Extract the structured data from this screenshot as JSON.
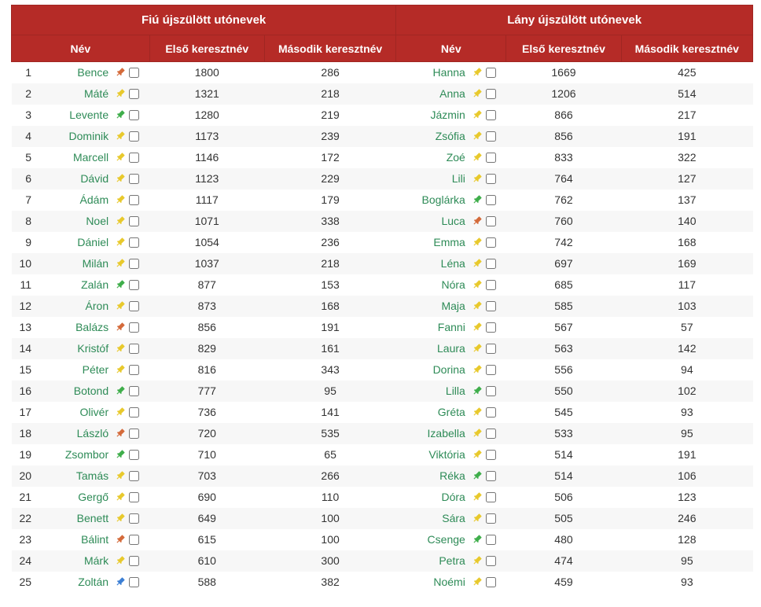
{
  "colors": {
    "header_bg": "#b52b27",
    "header_border": "#a02622",
    "header_text": "#ffffff",
    "row_odd": "#ffffff",
    "row_even": "#f7f7f7",
    "name_link": "#2e8b57",
    "text": "#333333",
    "pin_yellow": "#e8c92c",
    "pin_green": "#3fae4b",
    "pin_orange": "#d46a3a",
    "pin_blue": "#3c7fd4"
  },
  "headers": {
    "group_boy": "Fiú újszülött utónevek",
    "group_girl": "Lány újszülött utónevek",
    "name": "Név",
    "first": "Első keresztnév",
    "second": "Második keresztnév"
  },
  "rows": [
    {
      "rank": 1,
      "boy": {
        "name": "Bence",
        "pin": "orange",
        "first": 1800,
        "second": 286
      },
      "girl": {
        "name": "Hanna",
        "pin": "yellow",
        "first": 1669,
        "second": 425
      }
    },
    {
      "rank": 2,
      "boy": {
        "name": "Máté",
        "pin": "yellow",
        "first": 1321,
        "second": 218
      },
      "girl": {
        "name": "Anna",
        "pin": "yellow",
        "first": 1206,
        "second": 514
      }
    },
    {
      "rank": 3,
      "boy": {
        "name": "Levente",
        "pin": "green",
        "first": 1280,
        "second": 219
      },
      "girl": {
        "name": "Jázmin",
        "pin": "yellow",
        "first": 866,
        "second": 217
      }
    },
    {
      "rank": 4,
      "boy": {
        "name": "Dominik",
        "pin": "yellow",
        "first": 1173,
        "second": 239
      },
      "girl": {
        "name": "Zsófia",
        "pin": "yellow",
        "first": 856,
        "second": 191
      }
    },
    {
      "rank": 5,
      "boy": {
        "name": "Marcell",
        "pin": "yellow",
        "first": 1146,
        "second": 172
      },
      "girl": {
        "name": "Zoé",
        "pin": "yellow",
        "first": 833,
        "second": 322
      }
    },
    {
      "rank": 6,
      "boy": {
        "name": "Dávid",
        "pin": "yellow",
        "first": 1123,
        "second": 229
      },
      "girl": {
        "name": "Lili",
        "pin": "yellow",
        "first": 764,
        "second": 127
      }
    },
    {
      "rank": 7,
      "boy": {
        "name": "Ádám",
        "pin": "yellow",
        "first": 1117,
        "second": 179
      },
      "girl": {
        "name": "Boglárka",
        "pin": "green",
        "first": 762,
        "second": 137
      }
    },
    {
      "rank": 8,
      "boy": {
        "name": "Noel",
        "pin": "yellow",
        "first": 1071,
        "second": 338
      },
      "girl": {
        "name": "Luca",
        "pin": "orange",
        "first": 760,
        "second": 140
      }
    },
    {
      "rank": 9,
      "boy": {
        "name": "Dániel",
        "pin": "yellow",
        "first": 1054,
        "second": 236
      },
      "girl": {
        "name": "Emma",
        "pin": "yellow",
        "first": 742,
        "second": 168
      }
    },
    {
      "rank": 10,
      "boy": {
        "name": "Milán",
        "pin": "yellow",
        "first": 1037,
        "second": 218
      },
      "girl": {
        "name": "Léna",
        "pin": "yellow",
        "first": 697,
        "second": 169
      }
    },
    {
      "rank": 11,
      "boy": {
        "name": "Zalán",
        "pin": "green",
        "first": 877,
        "second": 153
      },
      "girl": {
        "name": "Nóra",
        "pin": "yellow",
        "first": 685,
        "second": 117
      }
    },
    {
      "rank": 12,
      "boy": {
        "name": "Áron",
        "pin": "yellow",
        "first": 873,
        "second": 168
      },
      "girl": {
        "name": "Maja",
        "pin": "yellow",
        "first": 585,
        "second": 103
      }
    },
    {
      "rank": 13,
      "boy": {
        "name": "Balázs",
        "pin": "orange",
        "first": 856,
        "second": 191
      },
      "girl": {
        "name": "Fanni",
        "pin": "yellow",
        "first": 567,
        "second": 57
      }
    },
    {
      "rank": 14,
      "boy": {
        "name": "Kristóf",
        "pin": "yellow",
        "first": 829,
        "second": 161
      },
      "girl": {
        "name": "Laura",
        "pin": "yellow",
        "first": 563,
        "second": 142
      }
    },
    {
      "rank": 15,
      "boy": {
        "name": "Péter",
        "pin": "yellow",
        "first": 816,
        "second": 343
      },
      "girl": {
        "name": "Dorina",
        "pin": "yellow",
        "first": 556,
        "second": 94
      }
    },
    {
      "rank": 16,
      "boy": {
        "name": "Botond",
        "pin": "green",
        "first": 777,
        "second": 95
      },
      "girl": {
        "name": "Lilla",
        "pin": "green",
        "first": 550,
        "second": 102
      }
    },
    {
      "rank": 17,
      "boy": {
        "name": "Olivér",
        "pin": "yellow",
        "first": 736,
        "second": 141
      },
      "girl": {
        "name": "Gréta",
        "pin": "yellow",
        "first": 545,
        "second": 93
      }
    },
    {
      "rank": 18,
      "boy": {
        "name": "László",
        "pin": "orange",
        "first": 720,
        "second": 535
      },
      "girl": {
        "name": "Izabella",
        "pin": "yellow",
        "first": 533,
        "second": 95
      }
    },
    {
      "rank": 19,
      "boy": {
        "name": "Zsombor",
        "pin": "green",
        "first": 710,
        "second": 65
      },
      "girl": {
        "name": "Viktória",
        "pin": "yellow",
        "first": 514,
        "second": 191
      }
    },
    {
      "rank": 20,
      "boy": {
        "name": "Tamás",
        "pin": "yellow",
        "first": 703,
        "second": 266
      },
      "girl": {
        "name": "Réka",
        "pin": "green",
        "first": 514,
        "second": 106
      }
    },
    {
      "rank": 21,
      "boy": {
        "name": "Gergő",
        "pin": "yellow",
        "first": 690,
        "second": 110
      },
      "girl": {
        "name": "Dóra",
        "pin": "yellow",
        "first": 506,
        "second": 123
      }
    },
    {
      "rank": 22,
      "boy": {
        "name": "Benett",
        "pin": "yellow",
        "first": 649,
        "second": 100
      },
      "girl": {
        "name": "Sára",
        "pin": "yellow",
        "first": 505,
        "second": 246
      }
    },
    {
      "rank": 23,
      "boy": {
        "name": "Bálint",
        "pin": "orange",
        "first": 615,
        "second": 100
      },
      "girl": {
        "name": "Csenge",
        "pin": "green",
        "first": 480,
        "second": 128
      }
    },
    {
      "rank": 24,
      "boy": {
        "name": "Márk",
        "pin": "yellow",
        "first": 610,
        "second": 300
      },
      "girl": {
        "name": "Petra",
        "pin": "yellow",
        "first": 474,
        "second": 95
      }
    },
    {
      "rank": 25,
      "boy": {
        "name": "Zoltán",
        "pin": "blue",
        "first": 588,
        "second": 382
      },
      "girl": {
        "name": "Noémi",
        "pin": "yellow",
        "first": 459,
        "second": 93
      }
    }
  ]
}
